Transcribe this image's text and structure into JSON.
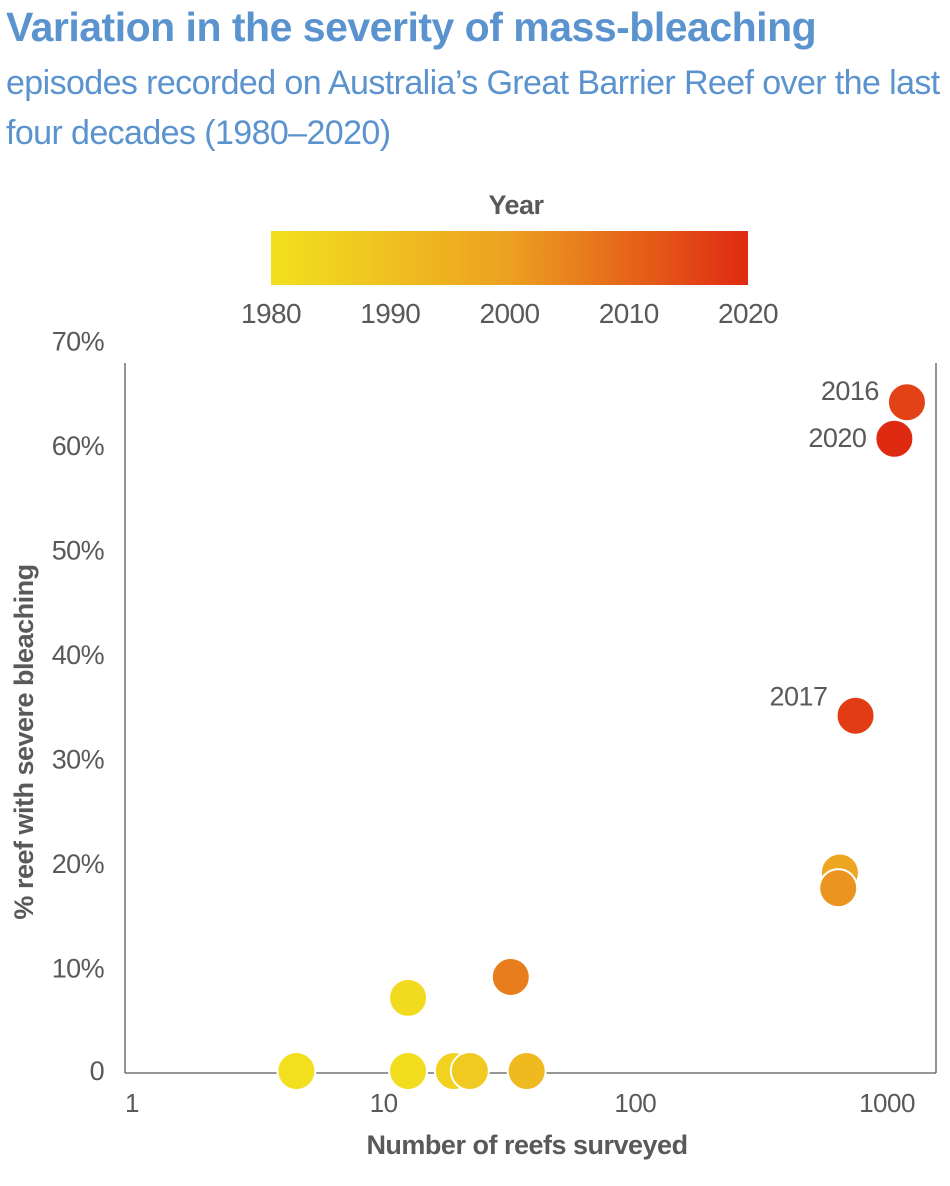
{
  "title": "Variation in the severity of mass-bleaching",
  "subtitle": "episodes recorded on Australia’s Great Barrier Reef over the last four decades (1980–2020)",
  "colors": {
    "title": "#5b93cf",
    "subtitle": "#5b93cf",
    "axis_text": "#595959",
    "axis_line": "#595959",
    "colorbar_start": "#f2e01f",
    "colorbar_mid": "#eca021",
    "colorbar_end": "#df2a12"
  },
  "chart_data": {
    "type": "scatter",
    "xlabel": "Number of reefs surveyed",
    "ylabel": "% reef with severe bleaching",
    "x_scale": "log",
    "xlim": [
      1,
      1250
    ],
    "ylim": [
      0,
      72
    ],
    "x_ticks": [
      1,
      10,
      100,
      1000
    ],
    "x_tick_labels": [
      "1",
      "10",
      "100",
      "1000"
    ],
    "y_ticks": [
      0,
      10,
      20,
      30,
      40,
      50,
      60,
      70
    ],
    "y_tick_labels": [
      "0",
      "10%",
      "20%",
      "30%",
      "40%",
      "50%",
      "60%",
      "70%"
    ],
    "grid": false,
    "colorbar": {
      "title": "Year",
      "range": [
        1980,
        2020
      ],
      "ticks": [
        1980,
        1990,
        2000,
        2010,
        2020
      ],
      "tick_labels": [
        "1980",
        "1990",
        "2000",
        "2010",
        "2020"
      ]
    },
    "points": [
      {
        "x": 4.5,
        "y": 0,
        "year": 1980,
        "label": ""
      },
      {
        "x": 12.5,
        "y": 0,
        "year": 1981,
        "label": ""
      },
      {
        "x": 12.5,
        "y": 7,
        "year": 1982,
        "label": ""
      },
      {
        "x": 19,
        "y": 0,
        "year": 1984,
        "label": ""
      },
      {
        "x": 22,
        "y": 0,
        "year": 1987,
        "label": ""
      },
      {
        "x": 37,
        "y": 0,
        "year": 1992,
        "label": ""
      },
      {
        "x": 650,
        "y": 19,
        "year": 1998,
        "label": ""
      },
      {
        "x": 640,
        "y": 17.5,
        "year": 2002,
        "label": ""
      },
      {
        "x": 32,
        "y": 9,
        "year": 2006,
        "label": ""
      },
      {
        "x": 1200,
        "y": 64,
        "year": 2016,
        "label": "2016"
      },
      {
        "x": 750,
        "y": 34,
        "year": 2017,
        "label": "2017"
      },
      {
        "x": 1070,
        "y": 60.5,
        "year": 2020,
        "label": "2020"
      }
    ]
  }
}
